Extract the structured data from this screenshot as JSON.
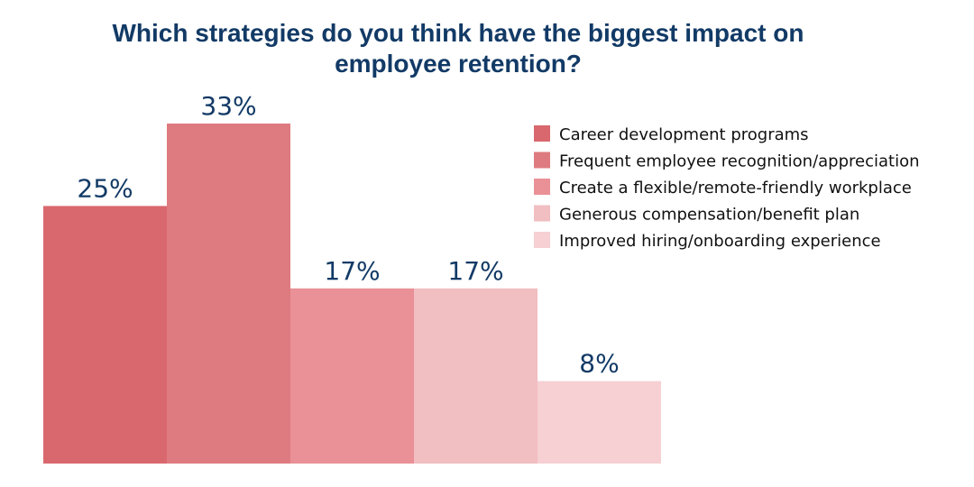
{
  "chart_data": {
    "type": "bar",
    "title_lines": [
      "Which strategies do you think have the biggest impact on",
      "employee retention?"
    ],
    "categories": [
      "Career development programs",
      "Frequent employee recognition/appreciation",
      "Create a flexible/remote-friendly workplace",
      "Generous compensation/benefit plan",
      "Improved hiring/onboarding experience"
    ],
    "values": [
      25,
      33,
      17,
      17,
      8
    ],
    "value_labels": [
      "25%",
      "33%",
      "17%",
      "17%",
      "8%"
    ],
    "unit": "%",
    "colors": [
      "#d9686e",
      "#de7b80",
      "#e99196",
      "#f1bec1",
      "#f6d0d3"
    ],
    "ylim": [
      0,
      33
    ],
    "grid": false,
    "legend_position": "top-right"
  }
}
